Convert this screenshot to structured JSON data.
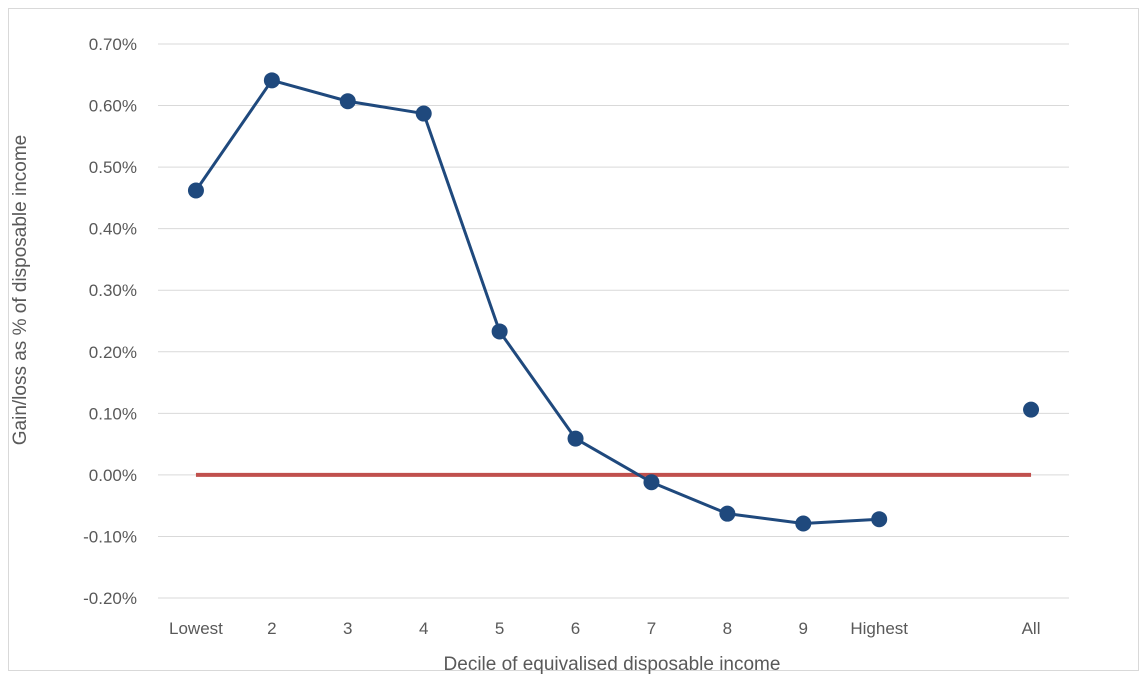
{
  "chart_data": {
    "type": "line",
    "title": "",
    "xlabel": "Decile of equivalised disposable income",
    "ylabel": "Gain/loss as % of disposable income",
    "categories": [
      "Lowest",
      "2",
      "3",
      "4",
      "5",
      "6",
      "7",
      "8",
      "9",
      "Highest",
      "",
      "All"
    ],
    "y_tick_labels": [
      "-0.20%",
      "-0.10%",
      "0.00%",
      "0.10%",
      "0.20%",
      "0.30%",
      "0.40%",
      "0.50%",
      "0.60%",
      "0.70%"
    ],
    "ylim": [
      -0.2,
      0.7
    ],
    "grid": true,
    "legend": "none",
    "series": [
      {
        "values": [
          0.462,
          0.641,
          0.607,
          0.587,
          0.233,
          0.059,
          -0.012,
          -0.063,
          -0.079,
          -0.072,
          null,
          0.106
        ],
        "color": "#1f497d",
        "marker": "circle",
        "line_connects_through_index": 9
      },
      {
        "values": [
          0,
          0,
          0,
          0,
          0,
          0,
          0,
          0,
          0,
          0,
          0,
          0
        ],
        "color": "#c0504d",
        "marker": "none"
      }
    ]
  }
}
